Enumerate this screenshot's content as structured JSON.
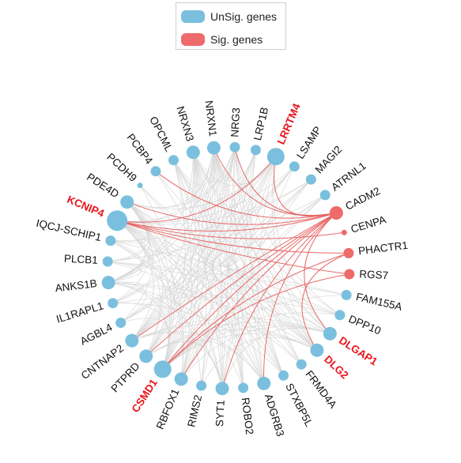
{
  "legend": {
    "unsig_label": "UnSig. genes",
    "sig_label": "Sig. genes"
  },
  "colors": {
    "unsig": "#7ac0de",
    "sig": "#ef6a6a",
    "sig_edge": "#e86060",
    "unsig_edge": "#d8d8d8",
    "highlight_label": "#e8141b"
  },
  "genes": [
    {
      "name": "LRRTM4",
      "type": "unsig",
      "highlight": true,
      "size": "large"
    },
    {
      "name": "LSAMP",
      "type": "unsig",
      "highlight": false,
      "size": "small"
    },
    {
      "name": "MAGI2",
      "type": "unsig",
      "highlight": false,
      "size": "small"
    },
    {
      "name": "ATRNL1",
      "type": "unsig",
      "highlight": false,
      "size": "small"
    },
    {
      "name": "CADM2",
      "type": "sig",
      "highlight": false,
      "size": "medium"
    },
    {
      "name": "CENPA",
      "type": "sig",
      "highlight": false,
      "size": "tiny"
    },
    {
      "name": "PHACTR1",
      "type": "sig",
      "highlight": false,
      "size": "small"
    },
    {
      "name": "RGS7",
      "type": "sig",
      "highlight": false,
      "size": "small"
    },
    {
      "name": "FAM155A",
      "type": "unsig",
      "highlight": false,
      "size": "small"
    },
    {
      "name": "DPP10",
      "type": "unsig",
      "highlight": false,
      "size": "small"
    },
    {
      "name": "DLGAP1",
      "type": "unsig",
      "highlight": true,
      "size": "medium"
    },
    {
      "name": "DLG2",
      "type": "unsig",
      "highlight": true,
      "size": "medium"
    },
    {
      "name": "FRMD4A",
      "type": "unsig",
      "highlight": false,
      "size": "small"
    },
    {
      "name": "STXBP5L",
      "type": "unsig",
      "highlight": false,
      "size": "small"
    },
    {
      "name": "ADGRB3",
      "type": "unsig",
      "highlight": false,
      "size": "medium"
    },
    {
      "name": "ROBO2",
      "type": "unsig",
      "highlight": false,
      "size": "small"
    },
    {
      "name": "SYT1",
      "type": "unsig",
      "highlight": false,
      "size": "medium"
    },
    {
      "name": "RIMS2",
      "type": "unsig",
      "highlight": false,
      "size": "small"
    },
    {
      "name": "RBFOX1",
      "type": "unsig",
      "highlight": false,
      "size": "medium"
    },
    {
      "name": "CSMD1",
      "type": "unsig",
      "highlight": true,
      "size": "large"
    },
    {
      "name": "PTPRD",
      "type": "unsig",
      "highlight": false,
      "size": "medium"
    },
    {
      "name": "CNTNAP2",
      "type": "unsig",
      "highlight": false,
      "size": "medium"
    },
    {
      "name": "AGBL4",
      "type": "unsig",
      "highlight": false,
      "size": "small"
    },
    {
      "name": "IL1RAPL1",
      "type": "unsig",
      "highlight": false,
      "size": "small"
    },
    {
      "name": "ANKS1B",
      "type": "unsig",
      "highlight": false,
      "size": "medium"
    },
    {
      "name": "PLCB1",
      "type": "unsig",
      "highlight": false,
      "size": "small"
    },
    {
      "name": "IQCJ-SCHIP1",
      "type": "unsig",
      "highlight": false,
      "size": "small"
    },
    {
      "name": "KCNIP4",
      "type": "unsig",
      "highlight": true,
      "size": "xlarge"
    },
    {
      "name": "PDE4D",
      "type": "unsig",
      "highlight": false,
      "size": "medium"
    },
    {
      "name": "PCDH9",
      "type": "unsig",
      "highlight": false,
      "size": "tiny"
    },
    {
      "name": "PCBP4",
      "type": "unsig",
      "highlight": false,
      "size": "small"
    },
    {
      "name": "OPCML",
      "type": "unsig",
      "highlight": false,
      "size": "small"
    },
    {
      "name": "NRXN3",
      "type": "unsig",
      "highlight": false,
      "size": "medium"
    },
    {
      "name": "NRXN1",
      "type": "unsig",
      "highlight": false,
      "size": "medium"
    },
    {
      "name": "NRG3",
      "type": "unsig",
      "highlight": false,
      "size": "small"
    },
    {
      "name": "LRP1B",
      "type": "unsig",
      "highlight": false,
      "size": "small"
    }
  ],
  "sig_edges": [
    [
      "CADM2",
      "LRRTM4"
    ],
    [
      "CADM2",
      "KCNIP4"
    ],
    [
      "CADM2",
      "CSMD1"
    ],
    [
      "CADM2",
      "RBFOX1"
    ],
    [
      "CADM2",
      "SYT1"
    ],
    [
      "CADM2",
      "PTPRD"
    ],
    [
      "CADM2",
      "DLGAP1"
    ],
    [
      "CADM2",
      "CNTNAP2"
    ],
    [
      "CADM2",
      "ADGRB3"
    ],
    [
      "CADM2",
      "PDE4D"
    ],
    [
      "CADM2",
      "NRG3"
    ],
    [
      "CADM2",
      "NRXN1"
    ],
    [
      "CENPA",
      "KCNIP4"
    ],
    [
      "PHACTR1",
      "KCNIP4"
    ],
    [
      "PHACTR1",
      "CSMD1"
    ],
    [
      "PHACTR1",
      "DLG2"
    ],
    [
      "RGS7",
      "KCNIP4"
    ],
    [
      "RGS7",
      "CSMD1"
    ],
    [
      "PCBP4",
      "CADM2"
    ],
    [
      "LRRTM4",
      "KCNIP4"
    ]
  ],
  "gray_edges": [
    [
      "KCNIP4",
      "CSMD1"
    ],
    [
      "KCNIP4",
      "DLGAP1"
    ],
    [
      "KCNIP4",
      "DLG2"
    ],
    [
      "KCNIP4",
      "LRRTM4"
    ],
    [
      "KCNIP4",
      "NRXN1"
    ],
    [
      "KCNIP4",
      "NRG3"
    ],
    [
      "KCNIP4",
      "SYT1"
    ],
    [
      "KCNIP4",
      "ADGRB3"
    ],
    [
      "KCNIP4",
      "PTPRD"
    ],
    [
      "KCNIP4",
      "CNTNAP2"
    ],
    [
      "KCNIP4",
      "ANKS1B"
    ],
    [
      "KCNIP4",
      "PDE4D"
    ],
    [
      "KCNIP4",
      "STXBP5L"
    ],
    [
      "KCNIP4",
      "FRMD4A"
    ],
    [
      "KCNIP4",
      "DPP10"
    ],
    [
      "KCNIP4",
      "MAGI2"
    ],
    [
      "KCNIP4",
      "LSAMP"
    ],
    [
      "KCNIP4",
      "RBFOX1"
    ],
    [
      "KCNIP4",
      "IQCJ-SCHIP1"
    ],
    [
      "KCNIP4",
      "PLCB1"
    ],
    [
      "CSMD1",
      "LRRTM4"
    ],
    [
      "CSMD1",
      "DLGAP1"
    ],
    [
      "CSMD1",
      "DLG2"
    ],
    [
      "CSMD1",
      "NRXN1"
    ],
    [
      "CSMD1",
      "NRXN3"
    ],
    [
      "CSMD1",
      "NRG3"
    ],
    [
      "CSMD1",
      "PDE4D"
    ],
    [
      "CSMD1",
      "ANKS1B"
    ],
    [
      "CSMD1",
      "OPCML"
    ],
    [
      "CSMD1",
      "LRP1B"
    ],
    [
      "CSMD1",
      "ATRNL1"
    ],
    [
      "CSMD1",
      "FAM155A"
    ],
    [
      "CSMD1",
      "DPP10"
    ],
    [
      "CSMD1",
      "AGBL4"
    ],
    [
      "CSMD1",
      "IL1RAPL1"
    ],
    [
      "CSMD1",
      "PCDH9"
    ],
    [
      "LRRTM4",
      "DLGAP1"
    ],
    [
      "LRRTM4",
      "DLG2"
    ],
    [
      "LRRTM4",
      "PTPRD"
    ],
    [
      "LRRTM4",
      "RBFOX1"
    ],
    [
      "LRRTM4",
      "SYT1"
    ],
    [
      "LRRTM4",
      "ADGRB3"
    ],
    [
      "LRRTM4",
      "CNTNAP2"
    ],
    [
      "LRRTM4",
      "PDE4D"
    ],
    [
      "LRRTM4",
      "NRXN1"
    ],
    [
      "LRRTM4",
      "NRXN3"
    ],
    [
      "LRRTM4",
      "ANKS1B"
    ],
    [
      "LRRTM4",
      "IL1RAPL1"
    ],
    [
      "DLGAP1",
      "PTPRD"
    ],
    [
      "DLGAP1",
      "RBFOX1"
    ],
    [
      "DLGAP1",
      "SYT1"
    ],
    [
      "DLGAP1",
      "NRXN1"
    ],
    [
      "DLGAP1",
      "NRXN3"
    ],
    [
      "DLGAP1",
      "PDE4D"
    ],
    [
      "DLGAP1",
      "CNTNAP2"
    ],
    [
      "DLGAP1",
      "ANKS1B"
    ],
    [
      "DLG2",
      "PTPRD"
    ],
    [
      "DLG2",
      "NRXN1"
    ],
    [
      "DLG2",
      "NRG3"
    ],
    [
      "DLG2",
      "PDE4D"
    ],
    [
      "DLG2",
      "CNTNAP2"
    ],
    [
      "DLG2",
      "ANKS1B"
    ],
    [
      "DLG2",
      "RIMS2"
    ],
    [
      "DLG2",
      "OPCML"
    ],
    [
      "PTPRD",
      "NRXN1"
    ],
    [
      "PTPRD",
      "NRXN3"
    ],
    [
      "PTPRD",
      "NRG3"
    ],
    [
      "PTPRD",
      "LRP1B"
    ],
    [
      "PTPRD",
      "PDE4D"
    ],
    [
      "PTPRD",
      "ADGRB3"
    ],
    [
      "PTPRD",
      "SYT1"
    ],
    [
      "PTPRD",
      "MAGI2"
    ],
    [
      "SYT1",
      "NRXN1"
    ],
    [
      "SYT1",
      "NRXN3"
    ],
    [
      "SYT1",
      "NRG3"
    ],
    [
      "SYT1",
      "PDE4D"
    ],
    [
      "SYT1",
      "ANKS1B"
    ],
    [
      "SYT1",
      "CNTNAP2"
    ],
    [
      "SYT1",
      "OPCML"
    ],
    [
      "SYT1",
      "LSAMP"
    ],
    [
      "ADGRB3",
      "NRXN1"
    ],
    [
      "ADGRB3",
      "NRXN3"
    ],
    [
      "ADGRB3",
      "PDE4D"
    ],
    [
      "ADGRB3",
      "CNTNAP2"
    ],
    [
      "ADGRB3",
      "ANKS1B"
    ],
    [
      "ADGRB3",
      "PCBP4"
    ],
    [
      "ADGRB3",
      "LRP1B"
    ],
    [
      "RBFOX1",
      "NRXN1"
    ],
    [
      "RBFOX1",
      "NRXN3"
    ],
    [
      "RBFOX1",
      "NRG3"
    ],
    [
      "RBFOX1",
      "PDE4D"
    ],
    [
      "RBFOX1",
      "OPCML"
    ],
    [
      "RBFOX1",
      "MAGI2"
    ],
    [
      "RBFOX1",
      "ATRNL1"
    ],
    [
      "CNTNAP2",
      "NRXN1"
    ],
    [
      "CNTNAP2",
      "NRXN3"
    ],
    [
      "CNTNAP2",
      "NRG3"
    ],
    [
      "CNTNAP2",
      "LRP1B"
    ],
    [
      "CNTNAP2",
      "LSAMP"
    ],
    [
      "CNTNAP2",
      "MAGI2"
    ],
    [
      "CNTNAP2",
      "ATRNL1"
    ],
    [
      "PDE4D",
      "NRXN1"
    ],
    [
      "PDE4D",
      "NRG3"
    ],
    [
      "PDE4D",
      "ANKS1B"
    ],
    [
      "PDE4D",
      "IQCJ-SCHIP1"
    ],
    [
      "PDE4D",
      "PLCB1"
    ],
    [
      "PDE4D",
      "IL1RAPL1"
    ],
    [
      "PDE4D",
      "AGBL4"
    ],
    [
      "ANKS1B",
      "NRXN1"
    ],
    [
      "ANKS1B",
      "NRXN3"
    ],
    [
      "ANKS1B",
      "NRG3"
    ],
    [
      "ANKS1B",
      "PLCB1"
    ],
    [
      "ANKS1B",
      "IQCJ-SCHIP1"
    ],
    [
      "ANKS1B",
      "IL1RAPL1"
    ],
    [
      "ANKS1B",
      "AGBL4"
    ],
    [
      "NRXN1",
      "NRXN3"
    ],
    [
      "NRXN1",
      "NRG3"
    ],
    [
      "NRXN1",
      "OPCML"
    ],
    [
      "NRXN1",
      "LRP1B"
    ],
    [
      "NRXN1",
      "STXBP5L"
    ],
    [
      "NRXN1",
      "FRMD4A"
    ],
    [
      "NRXN1",
      "ROBO2"
    ],
    [
      "NRXN1",
      "RIMS2"
    ],
    [
      "NRXN3",
      "NRG3"
    ],
    [
      "NRXN3",
      "OPCML"
    ],
    [
      "NRXN3",
      "ROBO2"
    ],
    [
      "NRXN3",
      "RIMS2"
    ],
    [
      "NRXN3",
      "STXBP5L"
    ],
    [
      "NRXN3",
      "DPP10"
    ],
    [
      "NRG3",
      "ROBO2"
    ],
    [
      "NRG3",
      "STXBP5L"
    ],
    [
      "NRG3",
      "FRMD4A"
    ],
    [
      "NRG3",
      "DPP10"
    ],
    [
      "LRP1B",
      "ROBO2"
    ],
    [
      "LRP1B",
      "RIMS2"
    ],
    [
      "OPCML",
      "ROBO2"
    ],
    [
      "OPCML",
      "STXBP5L"
    ],
    [
      "LSAMP",
      "AGBL4"
    ],
    [
      "LSAMP",
      "IL1RAPL1"
    ],
    [
      "MAGI2",
      "AGBL4"
    ],
    [
      "MAGI2",
      "IQCJ-SCHIP1"
    ],
    [
      "ATRNL1",
      "PLCB1"
    ],
    [
      "ATRNL1",
      "AGBL4"
    ],
    [
      "FAM155A",
      "PLCB1"
    ],
    [
      "FAM155A",
      "IQCJ-SCHIP1"
    ],
    [
      "DPP10",
      "PLCB1"
    ],
    [
      "DPP10",
      "IL1RAPL1"
    ],
    [
      "FRMD4A",
      "PLCB1"
    ],
    [
      "STXBP5L",
      "IL1RAPL1"
    ],
    [
      "ROBO2",
      "IQCJ-SCHIP1"
    ],
    [
      "RIMS2",
      "IQCJ-SCHIP1"
    ],
    [
      "PCDH9",
      "DLG2"
    ],
    [
      "PCDH9",
      "STXBP5L"
    ],
    [
      "PCBP4",
      "DLG2"
    ],
    [
      "OPCML",
      "FRMD4A"
    ]
  ]
}
